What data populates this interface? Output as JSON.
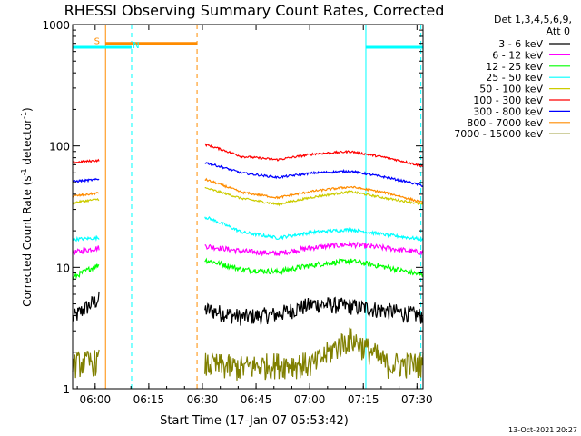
{
  "chart_data": {
    "type": "line",
    "title": "RHESSI Observing Summary Count Rates, Corrected",
    "xlabel": "Start Time (17-Jan-07 05:53:42)",
    "ylabel_main": "Corrected Count Rate (s",
    "ylabel_sup1": "-1",
    "ylabel_mid": " detector",
    "ylabel_sup2": "-1",
    "ylabel_end": ")",
    "footer": "13-Oct-2021 20:27",
    "yscale": "log",
    "ylim": [
      1,
      1000
    ],
    "xlim_min": [
      0,
      98
    ],
    "x_unit": "minutes since 05:53:42",
    "x_ticks": [
      {
        "min": 6.3,
        "label": "06:00"
      },
      {
        "min": 21.3,
        "label": "06:15"
      },
      {
        "min": 36.3,
        "label": "06:30"
      },
      {
        "min": 51.3,
        "label": "06:45"
      },
      {
        "min": 66.3,
        "label": "07:00"
      },
      {
        "min": 81.3,
        "label": "07:15"
      },
      {
        "min": 96.3,
        "label": "07:30"
      }
    ],
    "y_ticks": [
      {
        "value": 1,
        "label": "1"
      },
      {
        "value": 10,
        "label": "10"
      },
      {
        "value": 100,
        "label": "100"
      },
      {
        "value": 1000,
        "label": "1000"
      }
    ],
    "legend": {
      "placement": "right",
      "header_line1": "Det 1,3,4,5,6,9,",
      "header_line2": "Att 0"
    },
    "series": [
      {
        "name": "3 - 6 keV",
        "color": "#000000",
        "seg1": [
          3.8,
          5.5
        ],
        "seg2": [
          4.5,
          3.9,
          4.1,
          5.0,
          4.8,
          4.4,
          4.0
        ],
        "noise": 0.16
      },
      {
        "name": "6 - 12 keV",
        "color": "#ff00ff",
        "seg1": [
          13.2,
          14.5
        ],
        "seg2": [
          15.0,
          13.6,
          13.0,
          14.6,
          15.5,
          14.4,
          13.2
        ],
        "noise": 0.05
      },
      {
        "name": "12 - 25 keV",
        "color": "#00ff00",
        "seg1": [
          8.2,
          10.5
        ],
        "seg2": [
          11.5,
          9.6,
          9.2,
          10.5,
          11.3,
          10.0,
          8.6
        ],
        "noise": 0.05
      },
      {
        "name": "25 - 50 keV",
        "color": "#00ffff",
        "seg1": [
          17.0,
          17.5
        ],
        "seg2": [
          26.0,
          19.5,
          17.5,
          19.5,
          20.5,
          18.5,
          17.0
        ],
        "noise": 0.03
      },
      {
        "name": "50 - 100 keV",
        "color": "#cccc00",
        "seg1": [
          34.0,
          36.5
        ],
        "seg2": [
          45.0,
          37.0,
          33.0,
          38.0,
          42.0,
          37.0,
          33.0
        ],
        "noise": 0.02
      },
      {
        "name": "100 - 300 keV",
        "color": "#ff0000",
        "seg1": [
          73.0,
          76.0
        ],
        "seg2": [
          103.0,
          82.0,
          77.0,
          86.0,
          90.0,
          80.0,
          68.0
        ],
        "noise": 0.02
      },
      {
        "name": "300 - 800 keV",
        "color": "#0000ff",
        "seg1": [
          51.0,
          53.0
        ],
        "seg2": [
          73.0,
          60.0,
          55.0,
          60.0,
          62.0,
          55.0,
          47.0
        ],
        "noise": 0.02
      },
      {
        "name": "800 - 7000 keV",
        "color": "#ff8c00",
        "seg1": [
          38.5,
          41.0
        ],
        "seg2": [
          53.0,
          41.5,
          37.5,
          42.5,
          46.0,
          41.0,
          34.0
        ],
        "noise": 0.02
      },
      {
        "name": "7000 - 15000 keV",
        "color": "#808000",
        "seg1": [
          1.6,
          1.7
        ],
        "seg2": [
          1.6,
          1.5,
          1.6,
          1.6,
          2.6,
          1.6,
          1.6
        ],
        "noise": 0.25
      }
    ],
    "segment1_min": [
      0,
      7.4
    ],
    "segment2_min": [
      37.0,
      98
    ],
    "flags": [
      {
        "label": "S",
        "color": "#ff8c00",
        "value": 700,
        "start_min": 9.2,
        "end_min": 34.8,
        "label_min": 6.0
      },
      {
        "label": "N",
        "color": "#00ffff",
        "value": 650,
        "start_min": 0,
        "end_min": 16.5,
        "label_min": 16.8
      },
      {
        "label": "",
        "color": "#00ffff",
        "value": 650,
        "start_min": 82.0,
        "end_min": 98,
        "label_min": 0
      }
    ],
    "vlines": [
      {
        "min": 0,
        "color": "#00ffff",
        "style": "solid"
      },
      {
        "min": 9.2,
        "color": "#ff8c00",
        "style": "solid"
      },
      {
        "min": 16.5,
        "color": "#00ffff",
        "style": "dashed"
      },
      {
        "min": 34.8,
        "color": "#ff8c00",
        "style": "dashed"
      },
      {
        "min": 82.0,
        "color": "#00ffff",
        "style": "solid"
      },
      {
        "min": 97.4,
        "color": "#00ffff",
        "style": "dashed"
      }
    ]
  }
}
